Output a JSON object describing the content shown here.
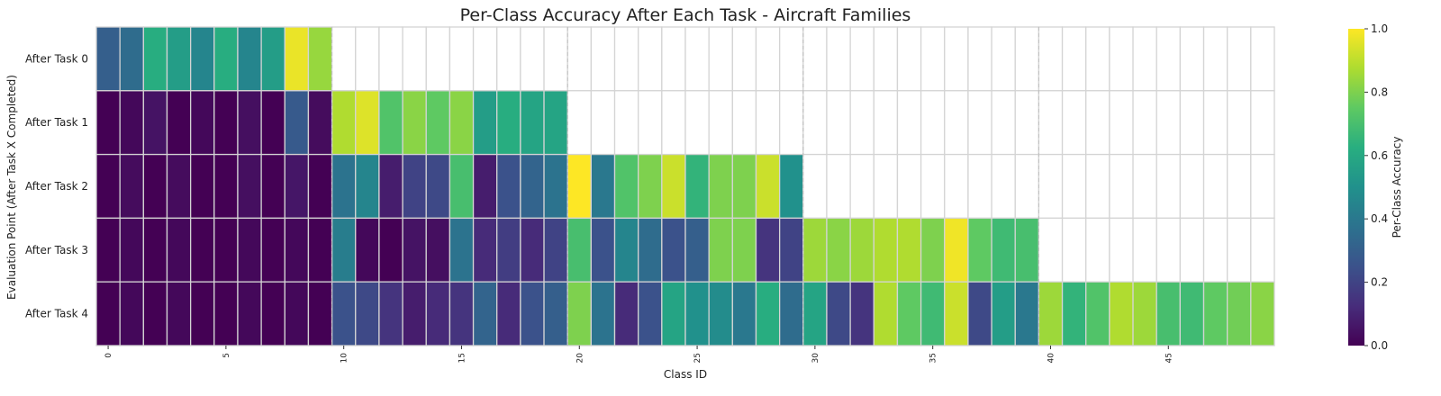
{
  "chart_data": {
    "type": "heatmap",
    "title": "Per-Class Accuracy After Each Task - Aircraft Families",
    "xlabel": "Class ID",
    "ylabel": "Evaluation Point (After Task X Completed)",
    "colorbar_label": "Per-Class Accuracy",
    "colormap": "viridis",
    "vmin": 0.0,
    "vmax": 1.0,
    "colorbar_ticks": [
      "0.0",
      "0.2",
      "0.4",
      "0.6",
      "0.8",
      "1.0"
    ],
    "x_tick_labels": [
      "0",
      "5",
      "10",
      "15",
      "20",
      "25",
      "30",
      "35",
      "40",
      "45"
    ],
    "x_tick_values": [
      0,
      5,
      10,
      15,
      20,
      25,
      30,
      35,
      40,
      45
    ],
    "n_classes": 50,
    "task_boundaries": [
      10,
      20,
      30,
      40
    ],
    "rows": [
      "After Task 0",
      "After Task 1",
      "After Task 2",
      "After Task 3",
      "After Task 4"
    ],
    "values": [
      [
        0.3,
        0.35,
        0.62,
        0.55,
        0.45,
        0.62,
        0.45,
        0.55,
        0.97,
        0.84,
        null,
        null,
        null,
        null,
        null,
        null,
        null,
        null,
        null,
        null,
        null,
        null,
        null,
        null,
        null,
        null,
        null,
        null,
        null,
        null,
        null,
        null,
        null,
        null,
        null,
        null,
        null,
        null,
        null,
        null,
        null,
        null,
        null,
        null,
        null,
        null,
        null,
        null,
        null,
        null
      ],
      [
        0.0,
        0.02,
        0.05,
        0.0,
        0.02,
        0.0,
        0.04,
        0.0,
        0.28,
        0.03,
        0.88,
        0.95,
        0.72,
        0.82,
        0.75,
        0.82,
        0.55,
        0.62,
        0.58,
        0.58,
        null,
        null,
        null,
        null,
        null,
        null,
        null,
        null,
        null,
        null,
        null,
        null,
        null,
        null,
        null,
        null,
        null,
        null,
        null,
        null,
        null,
        null,
        null,
        null,
        null,
        null,
        null,
        null,
        null,
        null
      ],
      [
        0.0,
        0.03,
        0.0,
        0.03,
        0.0,
        0.0,
        0.04,
        0.0,
        0.06,
        0.0,
        0.38,
        0.45,
        0.08,
        0.2,
        0.22,
        0.7,
        0.08,
        0.25,
        0.32,
        0.38,
        1.0,
        0.4,
        0.72,
        0.8,
        0.92,
        0.65,
        0.8,
        0.8,
        0.92,
        0.5,
        null,
        null,
        null,
        null,
        null,
        null,
        null,
        null,
        null,
        null,
        null,
        null,
        null,
        null,
        null,
        null,
        null,
        null,
        null,
        null
      ],
      [
        0.0,
        0.02,
        0.0,
        0.02,
        0.0,
        0.0,
        0.02,
        0.0,
        0.02,
        0.0,
        0.42,
        0.02,
        0.0,
        0.05,
        0.04,
        0.38,
        0.12,
        0.18,
        0.12,
        0.2,
        0.7,
        0.25,
        0.45,
        0.35,
        0.25,
        0.3,
        0.8,
        0.8,
        0.15,
        0.2,
        0.85,
        0.82,
        0.85,
        0.88,
        0.88,
        0.8,
        0.98,
        0.75,
        0.68,
        0.7
      ],
      [
        0.0,
        0.02,
        0.0,
        0.02,
        0.0,
        0.0,
        0.02,
        0.0,
        0.02,
        0.0,
        0.25,
        0.22,
        0.15,
        0.08,
        0.12,
        0.15,
        0.32,
        0.12,
        0.25,
        0.3,
        0.8,
        0.38,
        0.12,
        0.25,
        0.58,
        0.5,
        0.48,
        0.4,
        0.62,
        0.35,
        0.58,
        0.22,
        0.15,
        0.88,
        0.75,
        0.68,
        0.92,
        0.22,
        0.55,
        0.4,
        0.85,
        0.65,
        0.72,
        0.88,
        0.85,
        0.7,
        0.68,
        0.75,
        0.78,
        0.82
      ]
    ]
  }
}
